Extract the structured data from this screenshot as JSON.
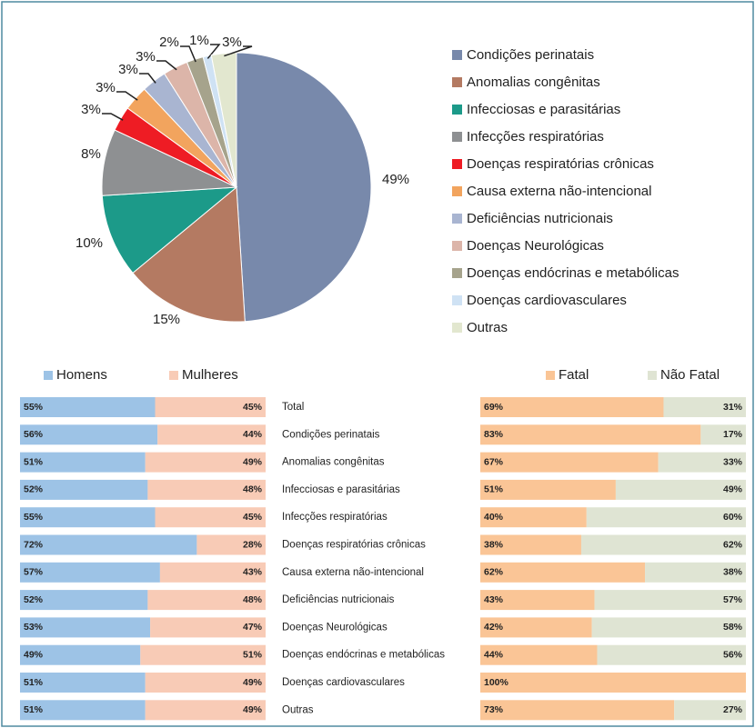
{
  "chart_data": [
    {
      "type": "pie",
      "categories": [
        "Condições perinatais",
        "Anomalias congênitas",
        "Infecciosas e parasitárias",
        "Infecções respiratórias",
        "Doenças respiratórias crônicas",
        "Causa externa não-intencional",
        "Deficiências nutricionais",
        "Doenças Neurológicas",
        "Doenças endócrinas e metabólicas",
        "Doenças cardiovasculares",
        "Outras"
      ],
      "values": [
        49,
        15,
        10,
        8,
        3,
        3,
        3,
        3,
        2,
        1,
        3
      ],
      "value_labels": [
        "49%",
        "15%",
        "10%",
        "8%",
        "3%",
        "3%",
        "3%",
        "3%",
        "2%",
        "1%",
        "3%"
      ],
      "colors": [
        "#7889ab",
        "#b47a62",
        "#1c9a89",
        "#8e9092",
        "#ee1c24",
        "#f2a45e",
        "#a9b5d1",
        "#dcb5a9",
        "#a6a38c",
        "#cfe2f4",
        "#e2e7cf"
      ],
      "legend": "right"
    },
    {
      "type": "stacked_bar_horizontal",
      "categories": [
        "Total",
        "Condições perinatais",
        "Anomalias congênitas",
        "Infecciosas e parasitárias",
        "Infecções respiratórias",
        "Doenças respiratórias crônicas",
        "Causa externa não-intencional",
        "Deficiências nutricionais",
        "Doenças Neurológicas",
        "Doenças endócrinas e metabólicas",
        "Doenças cardiovasculares",
        "Outras"
      ],
      "xlim": [
        0,
        100
      ],
      "series": [
        {
          "name": "Homens",
          "color": "#9dc3e6",
          "values": [
            55,
            56,
            51,
            52,
            55,
            72,
            57,
            52,
            53,
            49,
            51,
            51
          ],
          "value_labels": [
            "55%",
            "56%",
            "51%",
            "52%",
            "55%",
            "72%",
            "57%",
            "52%",
            "53%",
            "49%",
            "51%",
            "51%"
          ]
        },
        {
          "name": "Mulheres",
          "color": "#f8cbb6",
          "values": [
            45,
            44,
            49,
            48,
            45,
            28,
            43,
            48,
            47,
            51,
            49,
            49
          ],
          "value_labels": [
            "45%",
            "44%",
            "49%",
            "48%",
            "45%",
            "28%",
            "43%",
            "48%",
            "47%",
            "51%",
            "49%",
            "49%"
          ]
        }
      ]
    },
    {
      "type": "stacked_bar_horizontal",
      "xlim": [
        0,
        100
      ],
      "series": [
        {
          "name": "Fatal",
          "color": "#fac596",
          "values": [
            69,
            83,
            67,
            51,
            40,
            38,
            62,
            43,
            42,
            44,
            100,
            73
          ],
          "value_labels": [
            "69%",
            "83%",
            "67%",
            "51%",
            "40%",
            "38%",
            "62%",
            "43%",
            "42%",
            "44%",
            "100%",
            "73%"
          ]
        },
        {
          "name": "Não Fatal",
          "color": "#dfe4d3",
          "values": [
            31,
            17,
            33,
            49,
            60,
            62,
            38,
            57,
            58,
            56,
            0,
            27
          ],
          "value_labels": [
            "31%",
            "17%",
            "33%",
            "49%",
            "60%",
            "62%",
            "38%",
            "57%",
            "58%",
            "56%",
            null,
            "27%"
          ]
        }
      ]
    }
  ]
}
